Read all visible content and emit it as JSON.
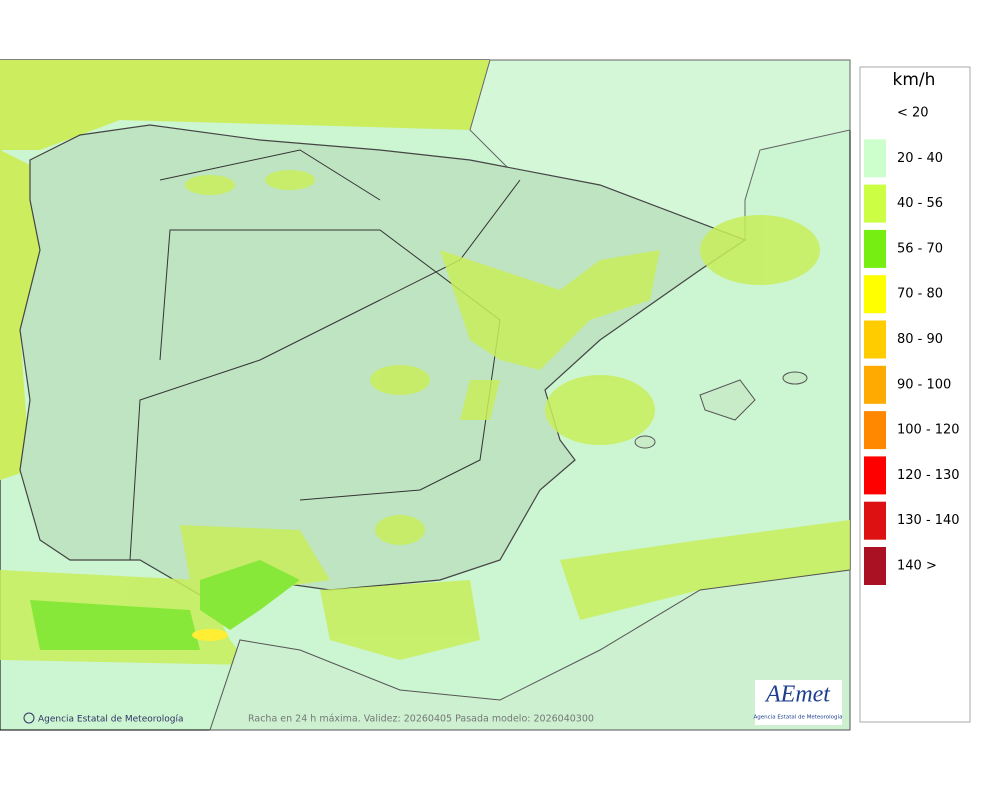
{
  "legend": {
    "title": "km/h",
    "items": [
      {
        "label": "< 20",
        "color": "#ffffff"
      },
      {
        "label": "20 - 40",
        "color": "#ccffcc"
      },
      {
        "label": "40 - 56",
        "color": "#ccff44"
      },
      {
        "label": "56 - 70",
        "color": "#77ee11"
      },
      {
        "label": "70 - 80",
        "color": "#ffff00"
      },
      {
        "label": "80 - 90",
        "color": "#ffcc00"
      },
      {
        "label": "90 - 100",
        "color": "#ffaa00"
      },
      {
        "label": "100 - 120",
        "color": "#ff8800"
      },
      {
        "label": "120 - 130",
        "color": "#ff0000"
      },
      {
        "label": "130 - 140",
        "color": "#dd1111"
      },
      {
        "label": "140 >",
        "color": "#aa1122"
      }
    ]
  },
  "footer": {
    "credit": "Agencia Estatal de Meteorología",
    "caption": "Racha en 24 h máxima. Validez: 20260405 Pasada modelo: 2026040300"
  },
  "logo": {
    "name": "AEmet",
    "subtitle": "Agencia Estatal de Meteorología"
  }
}
